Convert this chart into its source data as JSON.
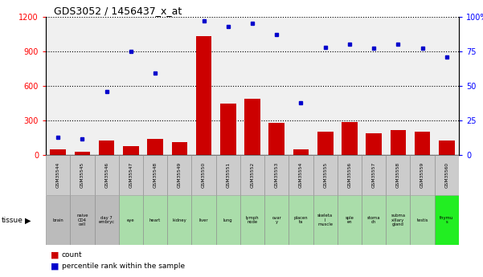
{
  "title": "GDS3052 / 1456437_x_at",
  "gsm_labels": [
    "GSM35544",
    "GSM35545",
    "GSM35546",
    "GSM35547",
    "GSM35548",
    "GSM35549",
    "GSM35550",
    "GSM35551",
    "GSM35552",
    "GSM35553",
    "GSM35554",
    "GSM35555",
    "GSM35556",
    "GSM35557",
    "GSM35558",
    "GSM35559",
    "GSM35560"
  ],
  "tissue_labels": [
    "brain",
    "naive\nCD4\ncell",
    "day 7\nembryc",
    "eye",
    "heart",
    "kidney",
    "liver",
    "lung",
    "lymph\nnode",
    "ovar\ny",
    "placen\nta",
    "skeleta\nl\nmuscle",
    "sple\nen",
    "stoma\nch",
    "subma\nxillary\ngland",
    "testis",
    "thymu\ns"
  ],
  "tissue_colors": [
    "#bbbbbb",
    "#bbbbbb",
    "#bbbbbb",
    "#aaddaa",
    "#aaddaa",
    "#aaddaa",
    "#aaddaa",
    "#aaddaa",
    "#aaddaa",
    "#aaddaa",
    "#aaddaa",
    "#aaddaa",
    "#aaddaa",
    "#aaddaa",
    "#aaddaa",
    "#aaddaa",
    "#22ee22"
  ],
  "count_values": [
    50,
    30,
    130,
    80,
    140,
    110,
    1030,
    450,
    490,
    280,
    50,
    200,
    290,
    190,
    220,
    200,
    130
  ],
  "percentile_values": [
    13,
    12,
    46,
    75,
    59,
    null,
    97,
    93,
    95,
    87,
    38,
    78,
    80,
    77,
    80,
    77,
    71
  ],
  "left_ylim": [
    0,
    1200
  ],
  "right_ylim": [
    0,
    100
  ],
  "left_yticks": [
    0,
    300,
    600,
    900,
    1200
  ],
  "right_yticks": [
    0,
    25,
    50,
    75,
    100
  ],
  "right_yticklabels": [
    "0",
    "25",
    "50",
    "75",
    "100%"
  ],
  "bar_color": "#cc0000",
  "dot_color": "#0000cc",
  "background_color": "#f0f0f0",
  "grid_color": "#000000"
}
